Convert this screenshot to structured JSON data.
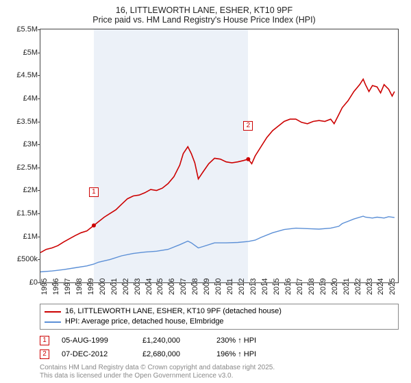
{
  "title_line1": "16, LITTLEWORTH LANE, ESHER, KT10 9PF",
  "title_line2": "Price paid vs. HM Land Registry's House Price Index (HPI)",
  "chart": {
    "type": "line",
    "background_color": "#ffffff",
    "shade_color": "rgba(200,215,235,0.35)",
    "border_color": "#444444",
    "xlim": [
      1995,
      2025.8
    ],
    "ylim": [
      0,
      5.5
    ],
    "ytick_step": 0.5,
    "ytick_labels": [
      "£0",
      "£500k",
      "£1M",
      "£1.5M",
      "£2M",
      "£2.5M",
      "£3M",
      "£3.5M",
      "£4M",
      "£4.5M",
      "£5M",
      "£5.5M"
    ],
    "xtick_years": [
      1995,
      1996,
      1997,
      1998,
      1999,
      2000,
      2001,
      2002,
      2003,
      2004,
      2005,
      2006,
      2007,
      2008,
      2009,
      2010,
      2011,
      2012,
      2013,
      2014,
      2015,
      2016,
      2017,
      2018,
      2019,
      2020,
      2021,
      2022,
      2023,
      2024,
      2025
    ],
    "tick_fontsize": 11,
    "shade_start_year": 1999.6,
    "shade_end_year": 2012.9,
    "series": [
      {
        "name": "price_paid",
        "label": "16, LITTLEWORTH LANE, ESHER, KT10 9PF (detached house)",
        "color": "#cc0000",
        "line_width": 1.6,
        "points": [
          [
            1995.0,
            0.65
          ],
          [
            1995.5,
            0.72
          ],
          [
            1996.0,
            0.75
          ],
          [
            1996.5,
            0.8
          ],
          [
            1997.0,
            0.88
          ],
          [
            1997.5,
            0.95
          ],
          [
            1998.0,
            1.02
          ],
          [
            1998.5,
            1.08
          ],
          [
            1999.0,
            1.12
          ],
          [
            1999.3,
            1.18
          ],
          [
            1999.6,
            1.24
          ],
          [
            2000.0,
            1.32
          ],
          [
            2000.5,
            1.42
          ],
          [
            2001.0,
            1.5
          ],
          [
            2001.5,
            1.58
          ],
          [
            2002.0,
            1.7
          ],
          [
            2002.5,
            1.82
          ],
          [
            2003.0,
            1.88
          ],
          [
            2003.5,
            1.9
          ],
          [
            2004.0,
            1.95
          ],
          [
            2004.5,
            2.02
          ],
          [
            2005.0,
            2.0
          ],
          [
            2005.5,
            2.05
          ],
          [
            2006.0,
            2.15
          ],
          [
            2006.5,
            2.3
          ],
          [
            2007.0,
            2.55
          ],
          [
            2007.3,
            2.8
          ],
          [
            2007.7,
            2.95
          ],
          [
            2008.0,
            2.8
          ],
          [
            2008.3,
            2.6
          ],
          [
            2008.6,
            2.25
          ],
          [
            2009.0,
            2.4
          ],
          [
            2009.5,
            2.58
          ],
          [
            2010.0,
            2.7
          ],
          [
            2010.5,
            2.68
          ],
          [
            2011.0,
            2.62
          ],
          [
            2011.5,
            2.6
          ],
          [
            2012.0,
            2.62
          ],
          [
            2012.5,
            2.65
          ],
          [
            2012.9,
            2.68
          ],
          [
            2013.2,
            2.58
          ],
          [
            2013.5,
            2.75
          ],
          [
            2014.0,
            2.95
          ],
          [
            2014.5,
            3.15
          ],
          [
            2015.0,
            3.3
          ],
          [
            2015.5,
            3.4
          ],
          [
            2016.0,
            3.5
          ],
          [
            2016.5,
            3.55
          ],
          [
            2017.0,
            3.55
          ],
          [
            2017.5,
            3.48
          ],
          [
            2018.0,
            3.45
          ],
          [
            2018.5,
            3.5
          ],
          [
            2019.0,
            3.52
          ],
          [
            2019.5,
            3.5
          ],
          [
            2020.0,
            3.55
          ],
          [
            2020.3,
            3.45
          ],
          [
            2020.7,
            3.65
          ],
          [
            2021.0,
            3.8
          ],
          [
            2021.5,
            3.95
          ],
          [
            2022.0,
            4.15
          ],
          [
            2022.5,
            4.3
          ],
          [
            2022.8,
            4.42
          ],
          [
            2023.0,
            4.3
          ],
          [
            2023.3,
            4.15
          ],
          [
            2023.6,
            4.28
          ],
          [
            2024.0,
            4.25
          ],
          [
            2024.3,
            4.12
          ],
          [
            2024.6,
            4.3
          ],
          [
            2025.0,
            4.2
          ],
          [
            2025.3,
            4.05
          ],
          [
            2025.5,
            4.15
          ]
        ]
      },
      {
        "name": "hpi",
        "label": "HPI: Average price, detached house, Elmbridge",
        "color": "#5b8fd6",
        "line_width": 1.4,
        "points": [
          [
            1995.0,
            0.23
          ],
          [
            1996.0,
            0.25
          ],
          [
            1997.0,
            0.28
          ],
          [
            1998.0,
            0.32
          ],
          [
            1999.0,
            0.36
          ],
          [
            1999.6,
            0.4
          ],
          [
            2000.0,
            0.44
          ],
          [
            2001.0,
            0.5
          ],
          [
            2002.0,
            0.58
          ],
          [
            2003.0,
            0.63
          ],
          [
            2004.0,
            0.66
          ],
          [
            2005.0,
            0.68
          ],
          [
            2006.0,
            0.72
          ],
          [
            2007.0,
            0.82
          ],
          [
            2007.7,
            0.9
          ],
          [
            2008.0,
            0.86
          ],
          [
            2008.6,
            0.75
          ],
          [
            2009.0,
            0.78
          ],
          [
            2010.0,
            0.86
          ],
          [
            2011.0,
            0.86
          ],
          [
            2012.0,
            0.87
          ],
          [
            2012.9,
            0.89
          ],
          [
            2013.5,
            0.92
          ],
          [
            2014.0,
            0.98
          ],
          [
            2015.0,
            1.08
          ],
          [
            2016.0,
            1.15
          ],
          [
            2017.0,
            1.18
          ],
          [
            2018.0,
            1.17
          ],
          [
            2019.0,
            1.16
          ],
          [
            2020.0,
            1.18
          ],
          [
            2020.7,
            1.22
          ],
          [
            2021.0,
            1.28
          ],
          [
            2022.0,
            1.38
          ],
          [
            2022.8,
            1.44
          ],
          [
            2023.0,
            1.42
          ],
          [
            2023.6,
            1.4
          ],
          [
            2024.0,
            1.42
          ],
          [
            2024.6,
            1.4
          ],
          [
            2025.0,
            1.43
          ],
          [
            2025.5,
            1.41
          ]
        ]
      }
    ],
    "transaction_markers": [
      {
        "n": "1",
        "year": 1999.6,
        "y": 1.24,
        "box_color": "#cc0000",
        "box_y_offset": -56
      },
      {
        "n": "2",
        "year": 2012.9,
        "y": 2.68,
        "box_color": "#cc0000",
        "box_y_offset": -56
      }
    ],
    "transaction_point_radius": 3,
    "transaction_point_color": "#cc0000"
  },
  "legend": {
    "border_color": "#888888",
    "fontsize": 11
  },
  "transactions": [
    {
      "n": "1",
      "date": "05-AUG-1999",
      "amount": "£1,240,000",
      "pct": "230% ↑ HPI",
      "color": "#cc0000"
    },
    {
      "n": "2",
      "date": "07-DEC-2012",
      "amount": "£2,680,000",
      "pct": "196% ↑ HPI",
      "color": "#cc0000"
    }
  ],
  "footer_line1": "Contains HM Land Registry data © Crown copyright and database right 2025.",
  "footer_line2": "This data is licensed under the Open Government Licence v3.0."
}
